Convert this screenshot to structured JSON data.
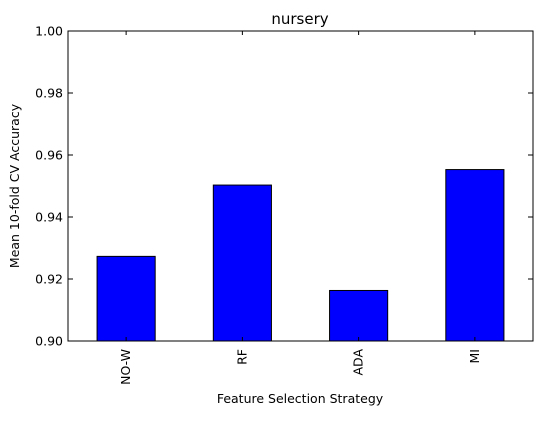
{
  "chart_data": {
    "type": "bar",
    "title": "nursery",
    "xlabel": "Feature Selection Strategy",
    "ylabel": "Mean 10-fold CV Accuracy",
    "categories": [
      "NO-W",
      "RF",
      "ADA",
      "MI"
    ],
    "values": [
      0.9273,
      0.9503,
      0.9163,
      0.9553
    ],
    "ylim": [
      0.9,
      1.0
    ],
    "yticks": [
      "0.90",
      "0.92",
      "0.94",
      "0.96",
      "0.98",
      "1.00"
    ],
    "bar_color": "#0000ff",
    "grid": false,
    "legend": "none"
  }
}
